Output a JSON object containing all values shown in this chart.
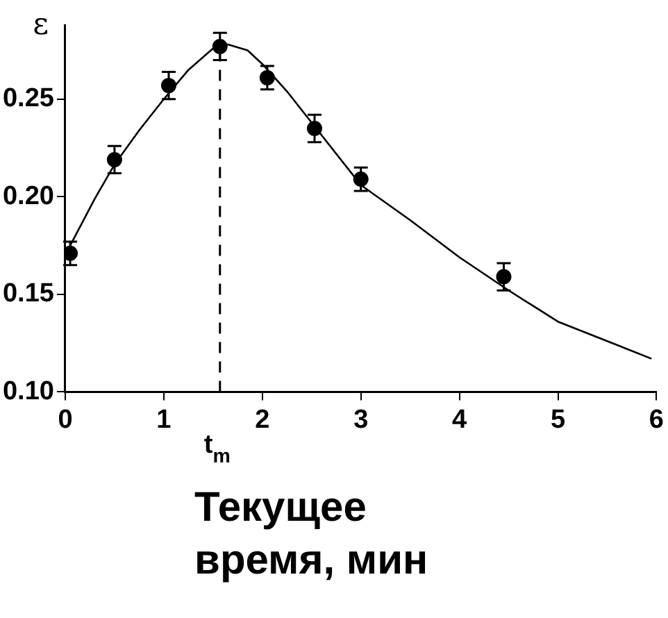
{
  "chart_data": {
    "type": "scatter",
    "ylabel": "ε",
    "xlabel": "Текущее время, мин",
    "xlim": [
      0,
      6
    ],
    "xticks": [
      0,
      1,
      2,
      3,
      4,
      5,
      6
    ],
    "ylim": [
      0.1,
      0.288
    ],
    "yticks": [
      {
        "value": 0.1,
        "label": "0.10"
      },
      0.15,
      {
        "value": 0.2,
        "label": "0.20"
      },
      0.25
    ],
    "grid": false,
    "legend": false,
    "ref_lines": [
      {
        "axis": "x",
        "value": 1.57,
        "label": "t$_{m}$",
        "line_style": "dashed",
        "color": "#000000"
      }
    ],
    "series": [
      {
        "color": "#000000",
        "marker": "circle",
        "x": [
          0.05,
          0.5,
          1.05,
          1.57,
          2.05,
          2.53,
          3.0,
          4.45
        ],
        "values": [
          0.171,
          0.219,
          0.257,
          0.277,
          0.261,
          0.235,
          0.209,
          0.159
        ],
        "errors": [
          0.006,
          0.007,
          0.007,
          0.007,
          0.006,
          0.007,
          0.006,
          0.007
        ]
      },
      {
        "type": "line",
        "color": "#000000",
        "marker": "none",
        "line_style": "solid",
        "x": [
          0.05,
          0.3,
          0.5,
          0.75,
          1.0,
          1.25,
          1.5,
          1.65,
          1.85,
          2.0,
          2.25,
          2.5,
          3.0,
          3.5,
          4.0,
          4.5,
          5.0,
          5.5,
          5.95
        ],
        "values": [
          0.175,
          0.199,
          0.2165,
          0.234,
          0.25,
          0.265,
          0.276,
          0.278,
          0.275,
          0.268,
          0.254,
          0.238,
          0.206,
          0.188,
          0.169,
          0.152,
          0.136,
          0.126,
          0.117
        ]
      }
    ]
  }
}
